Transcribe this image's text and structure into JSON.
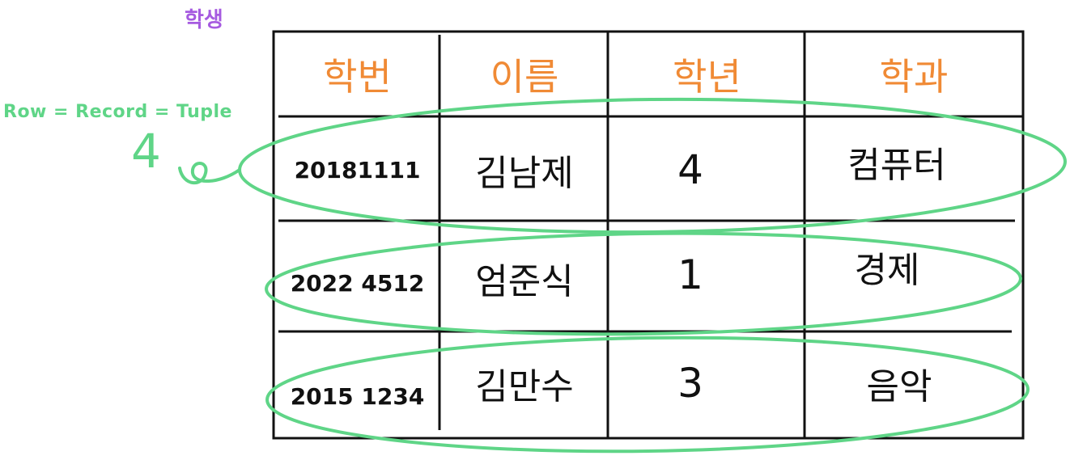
{
  "table": {
    "caption": "학생",
    "headers": [
      "학번",
      "이름",
      "학년",
      "학과"
    ],
    "rows": [
      [
        "20181111",
        "김남제",
        "4",
        "컴퓨터"
      ],
      [
        "2022 4512",
        "엄준식",
        "1",
        "경제"
      ],
      [
        "2015 1234",
        "김만수",
        "3",
        "음악"
      ]
    ]
  },
  "annotation": {
    "row_label": "Row = Record = Tuple",
    "row_count": "4"
  },
  "colors": {
    "caption": "#a65be0",
    "header": "#f08a35",
    "annotation": "#5fd587",
    "ink": "#111111"
  }
}
